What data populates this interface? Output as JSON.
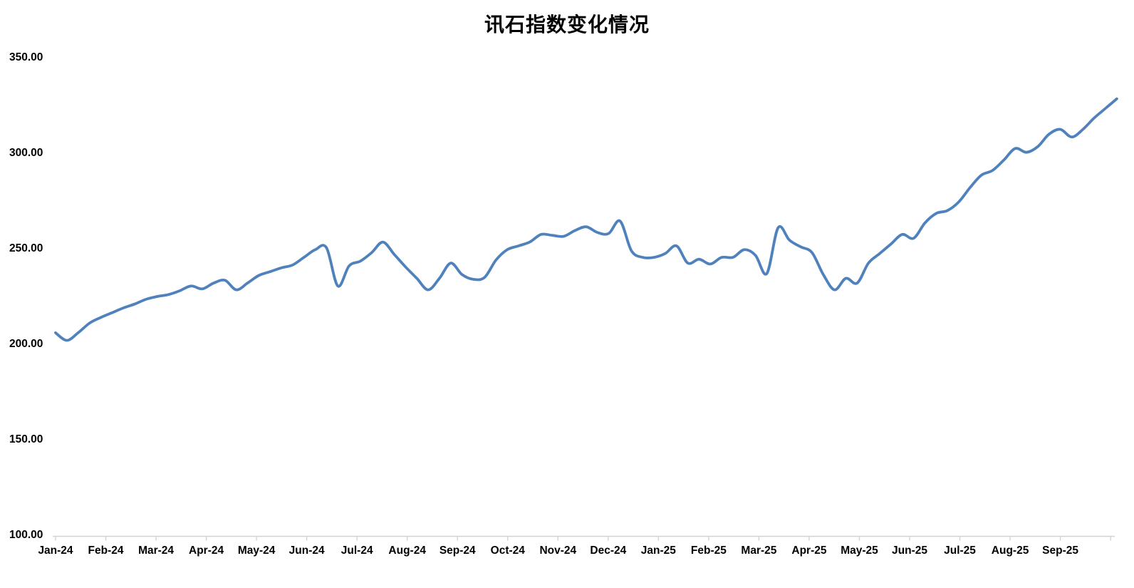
{
  "title": "讯石指数变化情况",
  "chart_data": {
    "type": "line",
    "title": "讯石指数变化情况",
    "x_axis": {
      "tick_labels": [
        "Jan-24",
        "Feb-24",
        "Mar-24",
        "Apr-24",
        "May-24",
        "Jun-24",
        "Jul-24",
        "Aug-24",
        "Sep-24",
        "Oct-24",
        "Nov-24",
        "Dec-24",
        "Jan-25",
        "Feb-25",
        "Mar-25",
        "Apr-25",
        "May-25",
        "Jun-25",
        "Jul-25",
        "Aug-25",
        "Sep-25"
      ]
    },
    "y_axis": {
      "tick_labels": [
        "350.00",
        "300.00",
        "250.00",
        "200.00",
        "150.00",
        "100.00"
      ],
      "min": 100,
      "max": 350,
      "step": 50
    },
    "series": [
      {
        "values": [
          206,
          202,
          206,
          211,
          214,
          216.5,
          219,
          221,
          223.5,
          225,
          226,
          228,
          230.5,
          229,
          232,
          233.5,
          228.5,
          232,
          236,
          238,
          240,
          241.5,
          245.5,
          249.5,
          250.5,
          230.5,
          241,
          243.5,
          248,
          253.5,
          247,
          240.5,
          234.5,
          228.5,
          234.5,
          242.5,
          236.5,
          234,
          235,
          244,
          249.5,
          251.5,
          253.5,
          257.5,
          257,
          256.5,
          259.5,
          261.5,
          258.5,
          258,
          264.5,
          249,
          245.5,
          245.5,
          247.5,
          251.5,
          242.5,
          244.5,
          242,
          245.5,
          245.5,
          249.5,
          246.5,
          237,
          261,
          254.5,
          251,
          248,
          236.5,
          228.5,
          234.5,
          232,
          242.5,
          247.5,
          252.5,
          257.5,
          255.5,
          263.5,
          268.5,
          270,
          274.5,
          282,
          288.5,
          291,
          296.5,
          302.5,
          300.5,
          303.5,
          310,
          312.5,
          308.5,
          312.5,
          318.5,
          323.5,
          328.5
        ]
      }
    ],
    "points_per_month": 4.45,
    "smoothed": true,
    "grid": "off",
    "legend": "none",
    "line_color": "#4F81BD",
    "axis_color": "#D3D3D3",
    "text_color": "#000000",
    "background_color": "#FFFFFF"
  }
}
